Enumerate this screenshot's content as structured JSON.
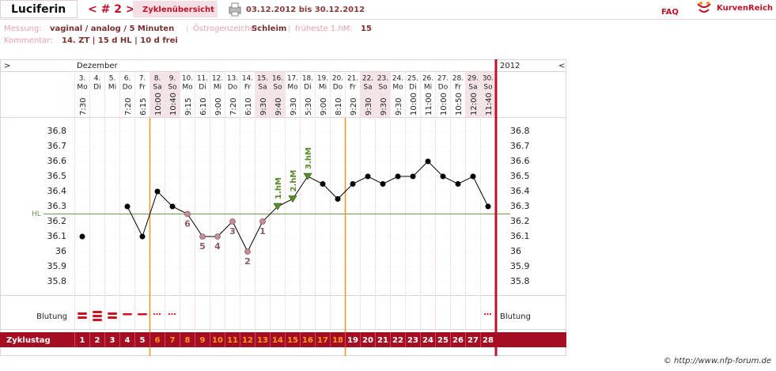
{
  "header": {
    "name": "Luciferin",
    "nav": "< # 2 >",
    "overview": "Zyklenübersicht",
    "range": "03.12.2012 bis 30.12.2012",
    "faq": "FAQ",
    "brand": "KurvenReich"
  },
  "info": {
    "measure_label": "Messung:",
    "measure": "vaginal / analog / 5 Minuten",
    "separator": "|",
    "estrogen_label": "Östrogenzeichen:",
    "estrogen": "Schleim",
    "earliest_label": "früheste 1.hM:",
    "earliest": 15,
    "comment_label": "Kommentar:",
    "comment": "14. ZT | 15 d HL | 10 d frei"
  },
  "chart_data": {
    "type": "line",
    "nav_left": ">",
    "nav_right": "<",
    "month": "Dezember",
    "year": "2012",
    "categories": [
      "3.",
      "4.",
      "5.",
      "6.",
      "7.",
      "8.",
      "9.",
      "10.",
      "11.",
      "12.",
      "13.",
      "14.",
      "15.",
      "16.",
      "17.",
      "18.",
      "19.",
      "20.",
      "21.",
      "22.",
      "23.",
      "24.",
      "25.",
      "26.",
      "27.",
      "28.",
      "29.",
      "30."
    ],
    "weekdays": [
      "Mo",
      "Di",
      "Mi",
      "Do",
      "Fr",
      "Sa",
      "So",
      "Mo",
      "Di",
      "Mi",
      "Do",
      "Fr",
      "Sa",
      "So",
      "Mo",
      "Di",
      "Mi",
      "Do",
      "Fr",
      "Sa",
      "So",
      "Mo",
      "Di",
      "Mi",
      "Do",
      "Fr",
      "Sa",
      "So"
    ],
    "times": [
      "7:30",
      null,
      null,
      "7:20",
      "6:15",
      "10:00",
      "10:40",
      "9:15",
      "6:10",
      "9:00",
      "7:20",
      "6:10",
      "9:30",
      "9:40",
      "9:30",
      "5:30",
      "9:00",
      "8:10",
      "9:20",
      "9:30",
      "9:30",
      "9:30",
      "10:00",
      "11:00",
      "10:00",
      "10:50",
      "12:00",
      "11:40"
    ],
    "column_colors": [
      "#fff",
      "#fff",
      "#fff",
      "#fff",
      "#fff",
      "#f4e4e7",
      "#f4e4e7",
      "#fff",
      "#fff",
      "#fff",
      "#fff",
      "#fff",
      "#f4e4e7",
      "#f4e4e7",
      "#fff",
      "#fff",
      "#fff",
      "#fff",
      "#fff",
      "#f4e4e7",
      "#f4e4e7",
      "#fff",
      "#fff",
      "#fff",
      "#fff",
      "#fff",
      "#f4e4e7",
      "#f4e4e7"
    ],
    "values": [
      36.1,
      null,
      null,
      36.3,
      36.1,
      36.4,
      36.3,
      36.25,
      36.1,
      36.1,
      36.2,
      36.0,
      36.2,
      36.3,
      36.35,
      36.5,
      36.45,
      36.35,
      36.45,
      36.5,
      36.45,
      36.5,
      36.5,
      36.6,
      36.5,
      36.45,
      36.5,
      36.3
    ],
    "color": "#000",
    "low_labels": [
      null,
      null,
      null,
      null,
      null,
      null,
      null,
      "6",
      "5",
      "4",
      "3",
      "2",
      "1",
      null,
      null,
      null,
      null,
      null,
      null,
      null,
      null,
      null,
      null,
      null,
      null,
      null,
      null,
      null
    ],
    "low_color": "#8a5a62",
    "high_labels": [
      null,
      null,
      null,
      null,
      null,
      null,
      null,
      null,
      null,
      null,
      null,
      null,
      null,
      "1.hM",
      "2.hM",
      "3.hM",
      null,
      null,
      null,
      null,
      null,
      null,
      null,
      null,
      null,
      null,
      null,
      null
    ],
    "high_color": "#5a8a2a",
    "hl_value": 36.25,
    "hl_label": "HL",
    "hl_color": "#6a9a4a",
    "ylim": [
      35.7,
      36.9
    ],
    "yticks": [
      35.8,
      35.9,
      36,
      36.1,
      36.2,
      36.3,
      36.4,
      36.5,
      36.6,
      36.7,
      36.8
    ],
    "grid": true,
    "bleeding_label": "Blutung",
    "cycle_label": "Zyklustag",
    "cycle_days": [
      1,
      2,
      3,
      4,
      5,
      6,
      7,
      8,
      9,
      10,
      11,
      12,
      13,
      14,
      15,
      16,
      17,
      18,
      19,
      20,
      21,
      22,
      23,
      24,
      25,
      26,
      27,
      28
    ],
    "cycle_day_colors": [
      "#fff",
      "#fff",
      "#fff",
      "#fff",
      "#fff",
      "#ff9a1a",
      "#ff9a1a",
      "#ff9a1a",
      "#ff9a1a",
      "#ff9a1a",
      "#ff9a1a",
      "#ff9a1a",
      "#ff9a1a",
      "#ff9a1a",
      "#ff9a1a",
      "#ff9a1a",
      "#ff9a1a",
      "#ff9a1a",
      "#fff",
      "#fff",
      "#fff",
      "#fff",
      "#fff",
      "#fff",
      "#fff",
      "#fff",
      "#fff",
      "#fff"
    ],
    "phase_line_color": "#f7941d"
  },
  "footer": "© http://www.nfp-forum.de"
}
